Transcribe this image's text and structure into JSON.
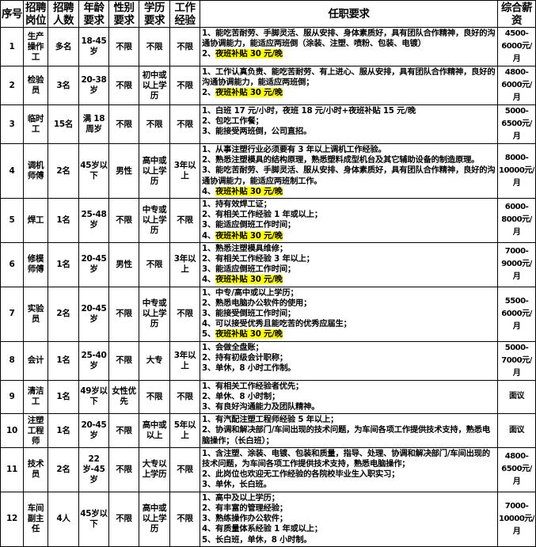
{
  "headers": {
    "no": "序号",
    "position": "招聘岗位",
    "count": "招聘人数",
    "age": "年龄要求",
    "gender": "性别要求",
    "education": "学历要求",
    "experience": "工作经验",
    "requirements": "任职要求",
    "salary": "综合薪资"
  },
  "highlight_color": "#ffff00",
  "rows": [
    {
      "no": "1",
      "position": "生产操作工",
      "count": "多名",
      "age": "18-45岁",
      "gender": "不限",
      "education": "不限",
      "experience": "不限",
      "requirements": [
        {
          "text": "1、能吃苦耐劳、手脚灵活、服从安排、身体素质好，具有团队合作精神，良好的沟通协调能力，能适应两班倒（涂装、注塑、喷粉、包装、电镀）"
        },
        {
          "prefix": "2、",
          "text": "夜班补贴 30 元/晚",
          "highlight": true
        }
      ],
      "salary": "4500-6000元/月"
    },
    {
      "no": "2",
      "position": "检验员",
      "count": "3名",
      "age": "20-38岁",
      "gender": "不限",
      "education": "初中或以上学历",
      "experience": "不限",
      "requirements": [
        {
          "text": "1、工作认真负责、能吃苦耐劳、有上进心、服从安排，具有团队合作精神，良好的沟通协调能力，能适应两班倒；"
        },
        {
          "prefix": "2、",
          "text": "夜班补贴 30 元/晚",
          "highlight": true
        }
      ],
      "salary": "4800-6000元/月"
    },
    {
      "no": "3",
      "position": "临时工",
      "count": "15名",
      "age": "满 18 周岁",
      "gender": "不限",
      "education": "不限",
      "experience": "不限",
      "requirements": [
        {
          "text": "1、白班 17 元/小时，夜班 18 元/小时+夜班补贴 15 元/晚"
        },
        {
          "text": "2、包吃工作餐；"
        },
        {
          "text": "3、能接受两班倒，公司直招。"
        }
      ],
      "salary": "5000-6500元/月"
    },
    {
      "no": "4",
      "position": "调机师傅",
      "count": "2名",
      "age": "45岁以下",
      "gender": "男性",
      "education": "高中或以上学历",
      "experience": "3年以上",
      "requirements": [
        {
          "text": "1、从事注塑行业必须要有 3 年以上调机工作经验。"
        },
        {
          "text": "2、熟悉注塑模具的结构原理，熟悉塑料成型机台及其它辅助设备的制造原理。"
        },
        {
          "text": "3、能吃苦耐劳、手脚灵活、服从安排、身体素质好，具有团队合作精神，良好的沟通协调能力，能适应两班制工作。"
        },
        {
          "prefix": "4、",
          "text": "夜班补贴 30 元/晚",
          "highlight": true
        }
      ],
      "salary": "8000-10000元/月"
    },
    {
      "no": "5",
      "position": "焊工",
      "count": "1名",
      "age": "25-48岁",
      "gender": "不限",
      "education": "中专或以上学历",
      "experience": "不限",
      "requirements": [
        {
          "text": "1、持有效焊工证；"
        },
        {
          "text": "2、有相关工作经验 1 年或以上；"
        },
        {
          "text": "3、能适应倒班工作时间；"
        },
        {
          "prefix": "4、",
          "text": "夜班补贴 30 元/晚",
          "highlight": true
        }
      ],
      "salary": "6000-8000元/月"
    },
    {
      "no": "6",
      "position": "修模师傅",
      "count": "1名",
      "age": "20-45岁",
      "gender": "男性",
      "education": "不限",
      "experience": "3年以上",
      "requirements": [
        {
          "text": "1、熟悉注塑模具维修；"
        },
        {
          "text": "2、有相关工作经验 3 年以上；"
        },
        {
          "text": "3、能适应倒班工作时间；"
        },
        {
          "prefix": "4、",
          "text": "夜班补贴 30 元/晚",
          "highlight": true
        }
      ],
      "salary": "7000-9000元/月"
    },
    {
      "no": "7",
      "position": "实验员",
      "count": "2名",
      "age": "20-45岁",
      "gender": "不限",
      "education": "中专或以上学历",
      "experience": "不限",
      "requirements": [
        {
          "text": "1、中专/高中或以上学历；"
        },
        {
          "text": "2、熟悉电脑办公软件的使用；"
        },
        {
          "text": "3、能接受倒班工作时间；"
        },
        {
          "text": "4、可以接受优秀且能吃苦的优秀应届生；"
        },
        {
          "prefix": "5、",
          "text": "夜班补贴 30 元/晚",
          "highlight": true
        }
      ],
      "salary": "5500-6000元/月"
    },
    {
      "no": "8",
      "position": "会计",
      "count": "1名",
      "age": "25-40岁",
      "gender": "不限",
      "education": "大专",
      "experience": "3年以上",
      "requirements": [
        {
          "text": "1、会做全盘账；"
        },
        {
          "text": "2、持有初级会计职称；"
        },
        {
          "text": "3、单休，8 小时工作制。"
        }
      ],
      "salary": "5000-7000元/月"
    },
    {
      "no": "9",
      "position": "清洁工",
      "count": "1名",
      "age": "49岁以下",
      "gender": "女性优先",
      "education": "不限",
      "experience": "不限",
      "requirements": [
        {
          "text": "1、有相关工作经验者优先；"
        },
        {
          "text": "2、单休、8 小时制；"
        },
        {
          "text": "3、有良好沟通能力及团队精神。"
        }
      ],
      "salary": "面议"
    },
    {
      "no": "10",
      "position": "注塑工程师",
      "count": "1名",
      "age": "20-45岁",
      "gender": "不限",
      "education": "高中或以上",
      "experience": "5年以上",
      "requirements": [
        {
          "text": "1、有汽配注塑工程师经验 5 年以上；"
        },
        {
          "text": "2、协调和解决部门/车间出现的技术问题，为车间各项工作提供技术支持，熟悉电脑操作；（长白班）；"
        }
      ],
      "salary": "面议"
    },
    {
      "no": "11",
      "position": "技术员",
      "count": "2名",
      "age": "22岁-45岁",
      "gender": "不限",
      "education": "大专以上学历",
      "experience": "不限",
      "requirements": [
        {
          "text": "1、含注塑、涂装、电镀、包装和质量，指导、处理、协调和解决部门/车间出现的技术问题，为车间各项工作提供技术支持，熟悉电脑操作；"
        },
        {
          "text": "2、此岗位也欢迎无工作经验的各院校毕业生入职实习；"
        },
        {
          "text": "3、单休，长白班。"
        }
      ],
      "salary": "4800-6500元/月"
    },
    {
      "no": "12",
      "position": "车间副主任",
      "count": "4人",
      "age": "45岁以下",
      "gender": "不限",
      "education": "高中或以上学历",
      "experience": "不限",
      "requirements": [
        {
          "text": "1、高中及以上学历；"
        },
        {
          "text": "2、有丰富的管理经验；"
        },
        {
          "text": "3、熟练操作办公软件；"
        },
        {
          "text": "4、有质量体系经验 1 年或以上；"
        },
        {
          "text": "5、长白班，单休，8 小时制。"
        }
      ],
      "salary": "7000-10000元/月"
    }
  ]
}
